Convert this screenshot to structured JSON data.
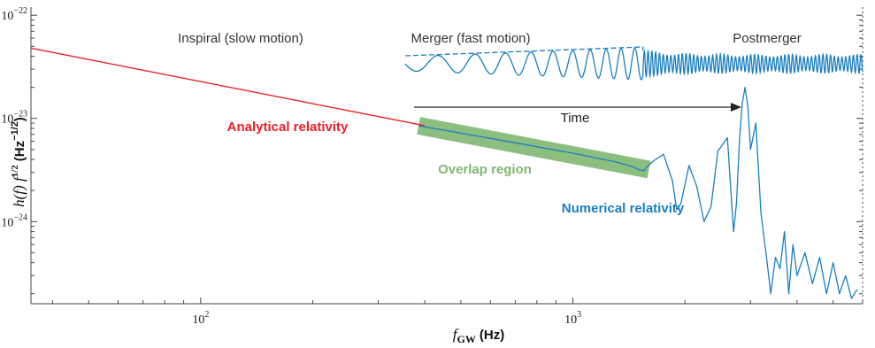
{
  "chart_data": {
    "type": "line",
    "xlabel": {
      "symbol": "f",
      "subscript": "GW",
      "unit": "(Hz)"
    },
    "ylabel": {
      "part1": "h(f) f",
      "exp": "1/2",
      "unit_base": "(Hz",
      "unit_exp": "−1/2",
      "unit_close": ")"
    },
    "x_scale": "log",
    "y_scale": "log",
    "xlim": [
      35,
      6000
    ],
    "ylim": [
      1.6e-25,
      1.2e-22
    ],
    "x_ticks": [
      {
        "value": 100,
        "base": "10",
        "exp": "2"
      },
      {
        "value": 1000,
        "base": "10",
        "exp": "3"
      }
    ],
    "y_ticks": [
      {
        "value": 1e-22,
        "base": "10",
        "exp": "−22"
      },
      {
        "value": 1e-23,
        "base": "10",
        "exp": "−23"
      },
      {
        "value": 1e-24,
        "base": "10",
        "exp": "−24"
      }
    ],
    "phase_labels": [
      "Inspiral (slow motion)",
      "Merger (fast motion)",
      "Postmerger"
    ],
    "time_arrow_label": "Time",
    "annotations": {
      "analytical": "Analytical relativity",
      "overlap": "Overlap region",
      "numerical": "Numerical relativity"
    },
    "colors": {
      "analytical": "#e8202a",
      "numerical": "#1a7fc1",
      "overlap": "#7fb872",
      "axis": "#444444"
    },
    "series": [
      {
        "name": "Analytical relativity",
        "x": [
          35,
          400
        ],
        "y": [
          4.8e-23,
          8.5e-24
        ]
      },
      {
        "name": "Numerical relativity",
        "x": [
          385,
          500,
          700,
          1000,
          1300,
          1450,
          1500,
          1550,
          1580,
          1650,
          1750,
          1850,
          1900,
          1950,
          2050,
          2150,
          2250,
          2350,
          2450,
          2600,
          2700,
          2750,
          2800,
          2850,
          2900,
          2950,
          3000,
          3100,
          3200,
          3300,
          3400,
          3500,
          3600,
          3700,
          3800,
          3900,
          4000,
          4200,
          4400,
          4600,
          4800,
          5000,
          5200,
          5400,
          5600,
          5800
        ],
        "y": [
          8.5e-24,
          7.2e-24,
          5.8e-24,
          4.6e-24,
          3.8e-24,
          3.4e-24,
          3.2e-24,
          3.1e-24,
          3.4e-24,
          3.9e-24,
          4.5e-24,
          2.5e-24,
          1.3e-24,
          1.5e-24,
          3.5e-24,
          2.2e-24,
          1e-24,
          1.4e-24,
          4.8e-24,
          6.5e-24,
          8e-25,
          1.5e-24,
          6e-24,
          1.4e-23,
          2e-23,
          1.3e-23,
          5e-24,
          9e-24,
          1.2e-24,
          5e-25,
          2e-25,
          4.5e-25,
          3.5e-25,
          8e-25,
          2e-25,
          6e-25,
          3e-25,
          5e-25,
          2.5e-25,
          4.5e-25,
          2e-25,
          4e-25,
          2e-25,
          3e-25,
          1.8e-25,
          2.2e-25
        ]
      },
      {
        "name": "Overlap region",
        "x": [
          385,
          1600
        ],
        "y": [
          8.5e-24,
          3.2e-24
        ]
      }
    ]
  }
}
